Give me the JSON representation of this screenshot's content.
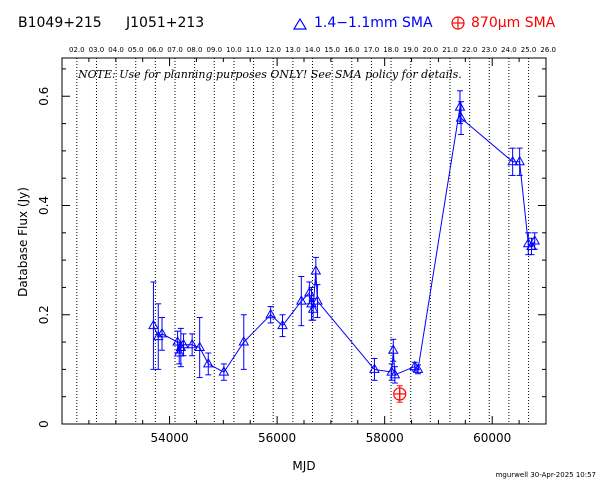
{
  "header": {
    "source_name": "B1049+215",
    "alt_name": "J1051+213",
    "legend_blue": "1.4−1.1mm SMA",
    "legend_red": "870μm SMA"
  },
  "footer": {
    "credit": "mgurwell 30-Apr-2025 10:57"
  },
  "colors": {
    "series_blue": "#0000ff",
    "series_red": "#ff0000",
    "axes": "#000000"
  },
  "chart_data": {
    "type": "scatter",
    "note": "NOTE: Use for planning purposes ONLY!  See SMA policy for details.",
    "xlabel": "MJD",
    "ylabel": "Database Flux (Jy)",
    "xlim": [
      52000,
      61000
    ],
    "ylim": [
      0,
      0.67
    ],
    "xticks": [
      54000,
      56000,
      58000,
      60000
    ],
    "xticklabels": [
      "54000",
      "56000",
      "58000",
      "60000"
    ],
    "yticks": [
      0,
      0.2,
      0.4,
      0.6
    ],
    "yticklabels": [
      "0",
      "0.2",
      "0.4",
      "0.6"
    ],
    "top_axis_labels": [
      "02.0",
      "03.0",
      "04.0",
      "05.0",
      "06.0",
      "07.0",
      "08.0",
      "09.0",
      "10.0",
      "11.0",
      "12.0",
      "13.0",
      "14.0",
      "15.0",
      "16.0",
      "17.0",
      "18.0",
      "19.0",
      "20.0",
      "21.0",
      "22.0",
      "23.0",
      "24.0",
      "25.0",
      "26.0"
    ],
    "top_axis_mjd": [
      52276,
      52641,
      53006,
      53371,
      53736,
      54101,
      54466,
      54832,
      55197,
      55562,
      55927,
      56293,
      56658,
      57023,
      57388,
      57754,
      58119,
      58484,
      58849,
      59215,
      59580,
      59945,
      60310,
      60676,
      61041
    ],
    "series": [
      {
        "name": "1.4−1.1mm SMA",
        "connected": true,
        "marker": "triangle",
        "points": [
          {
            "x": 53700,
            "y": 0.18,
            "err": 0.08
          },
          {
            "x": 53790,
            "y": 0.16,
            "err": 0.06
          },
          {
            "x": 53860,
            "y": 0.165,
            "err": 0.03
          },
          {
            "x": 54150,
            "y": 0.15,
            "err": 0.02
          },
          {
            "x": 54180,
            "y": 0.13,
            "err": 0.02
          },
          {
            "x": 54210,
            "y": 0.14,
            "err": 0.035
          },
          {
            "x": 54260,
            "y": 0.145,
            "err": 0.02
          },
          {
            "x": 54420,
            "y": 0.145,
            "err": 0.02
          },
          {
            "x": 54560,
            "y": 0.14,
            "err": 0.055
          },
          {
            "x": 54720,
            "y": 0.11,
            "err": 0.02
          },
          {
            "x": 55010,
            "y": 0.095,
            "err": 0.015
          },
          {
            "x": 55380,
            "y": 0.15,
            "err": 0.05
          },
          {
            "x": 55880,
            "y": 0.2,
            "err": 0.015
          },
          {
            "x": 56100,
            "y": 0.18,
            "err": 0.02
          },
          {
            "x": 56450,
            "y": 0.225,
            "err": 0.045
          },
          {
            "x": 56600,
            "y": 0.24,
            "err": 0.02
          },
          {
            "x": 56640,
            "y": 0.22,
            "err": 0.03
          },
          {
            "x": 56670,
            "y": 0.21,
            "err": 0.02
          },
          {
            "x": 56720,
            "y": 0.28,
            "err": 0.025
          },
          {
            "x": 56750,
            "y": 0.225,
            "err": 0.03
          },
          {
            "x": 57810,
            "y": 0.1,
            "err": 0.02
          },
          {
            "x": 58130,
            "y": 0.095,
            "err": 0.015
          },
          {
            "x": 58160,
            "y": 0.135,
            "err": 0.02
          },
          {
            "x": 58190,
            "y": 0.09,
            "err": 0.015
          },
          {
            "x": 58560,
            "y": 0.105,
            "err": 0.008
          },
          {
            "x": 58620,
            "y": 0.1,
            "err": 0.008
          },
          {
            "x": 59400,
            "y": 0.58,
            "err": 0.03
          },
          {
            "x": 59420,
            "y": 0.56,
            "err": 0.03
          },
          {
            "x": 60380,
            "y": 0.48,
            "err": 0.025
          },
          {
            "x": 60510,
            "y": 0.48,
            "err": 0.025
          },
          {
            "x": 60670,
            "y": 0.33,
            "err": 0.02
          },
          {
            "x": 60730,
            "y": 0.325,
            "err": 0.015
          },
          {
            "x": 60790,
            "y": 0.335,
            "err": 0.015
          }
        ]
      },
      {
        "name": "870μm SMA",
        "connected": false,
        "marker": "circle-plus",
        "points": [
          {
            "x": 58280,
            "y": 0.055,
            "err": 0.015
          }
        ]
      }
    ]
  }
}
